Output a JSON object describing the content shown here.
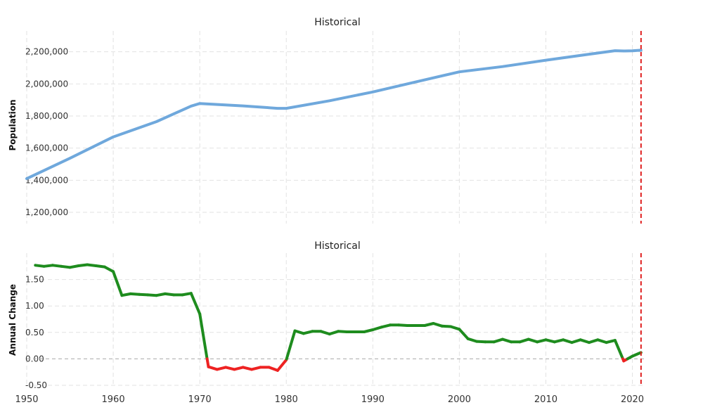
{
  "chart_data": [
    {
      "type": "line",
      "title": "Historical",
      "xlabel": "",
      "ylabel": "Population",
      "xlim": [
        1950,
        2021.5
      ],
      "ylim": [
        1130000,
        2330000
      ],
      "y_ticks": [
        {
          "value": 1200000,
          "label": "1,200,000"
        },
        {
          "value": 1400000,
          "label": "1,400,000"
        },
        {
          "value": 1600000,
          "label": "1,600,000"
        },
        {
          "value": 1800000,
          "label": "1,800,000"
        },
        {
          "value": 2000000,
          "label": "2,000,000"
        },
        {
          "value": 2200000,
          "label": "2,200,000"
        }
      ],
      "x_gridlines": [
        1950,
        1960,
        1970,
        1980,
        1990,
        2000,
        2010,
        2020
      ],
      "marker_year": 2021,
      "line_color": "#6fa8dc",
      "marker_color": "#e02020",
      "series": [
        {
          "name": "Population",
          "x": [
            1950,
            1955,
            1960,
            1965,
            1969,
            1970,
            1975,
            1979,
            1980,
            1985,
            1990,
            1995,
            2000,
            2005,
            2010,
            2015,
            2018,
            2019,
            2020,
            2021
          ],
          "values": [
            1410000,
            1537000,
            1670000,
            1765000,
            1862000,
            1878000,
            1863000,
            1848000,
            1848000,
            1895000,
            1950000,
            2013000,
            2075000,
            2108000,
            2148000,
            2185000,
            2207000,
            2205000,
            2206000,
            2210000
          ]
        }
      ]
    },
    {
      "type": "line",
      "title": "Historical",
      "xlabel": "",
      "ylabel": "Annual Change",
      "xlim": [
        1950,
        2021.5
      ],
      "ylim": [
        -0.5,
        2.0
      ],
      "y_ticks": [
        {
          "value": -0.5,
          "label": "-0.50"
        },
        {
          "value": 0,
          "label": "0.00"
        },
        {
          "value": 0.5,
          "label": "0.50"
        },
        {
          "value": 1.0,
          "label": "1.00"
        },
        {
          "value": 1.5,
          "label": "1.50"
        }
      ],
      "x_gridlines": [
        1950,
        1960,
        1970,
        1980,
        1990,
        2000,
        2010,
        2020
      ],
      "x_ticks": [
        1950,
        1960,
        1970,
        1980,
        1990,
        2000,
        2010,
        2020
      ],
      "marker_year": 2021,
      "positive_color": "#1e8c1e",
      "negative_color": "#ee2222",
      "zero_line_color": "#aaaaaa",
      "marker_color": "#e02020",
      "series": [
        {
          "name": "Annual Change",
          "x": [
            1951,
            1952,
            1953,
            1954,
            1955,
            1956,
            1957,
            1958,
            1959,
            1960,
            1961,
            1962,
            1963,
            1964,
            1965,
            1966,
            1967,
            1968,
            1969,
            1970,
            1971,
            1972,
            1973,
            1974,
            1975,
            1976,
            1977,
            1978,
            1979,
            1980,
            1981,
            1982,
            1983,
            1984,
            1985,
            1986,
            1987,
            1988,
            1989,
            1990,
            1991,
            1992,
            1993,
            1994,
            1995,
            1996,
            1997,
            1998,
            1999,
            2000,
            2001,
            2002,
            2003,
            2004,
            2005,
            2006,
            2007,
            2008,
            2009,
            2010,
            2011,
            2012,
            2013,
            2014,
            2015,
            2016,
            2017,
            2018,
            2019,
            2020,
            2021
          ],
          "values": [
            1.77,
            1.75,
            1.77,
            1.75,
            1.73,
            1.76,
            1.78,
            1.76,
            1.74,
            1.65,
            1.2,
            1.23,
            1.22,
            1.21,
            1.2,
            1.23,
            1.21,
            1.21,
            1.24,
            0.85,
            -0.15,
            -0.2,
            -0.16,
            -0.2,
            -0.16,
            -0.2,
            -0.16,
            -0.16,
            -0.22,
            -0.02,
            0.53,
            0.48,
            0.52,
            0.52,
            0.47,
            0.52,
            0.51,
            0.51,
            0.51,
            0.55,
            0.6,
            0.64,
            0.64,
            0.63,
            0.63,
            0.63,
            0.67,
            0.62,
            0.61,
            0.56,
            0.38,
            0.33,
            0.32,
            0.32,
            0.37,
            0.32,
            0.32,
            0.37,
            0.32,
            0.36,
            0.32,
            0.36,
            0.31,
            0.36,
            0.31,
            0.36,
            0.31,
            0.35,
            -0.04,
            0.05,
            0.12
          ]
        }
      ]
    }
  ]
}
